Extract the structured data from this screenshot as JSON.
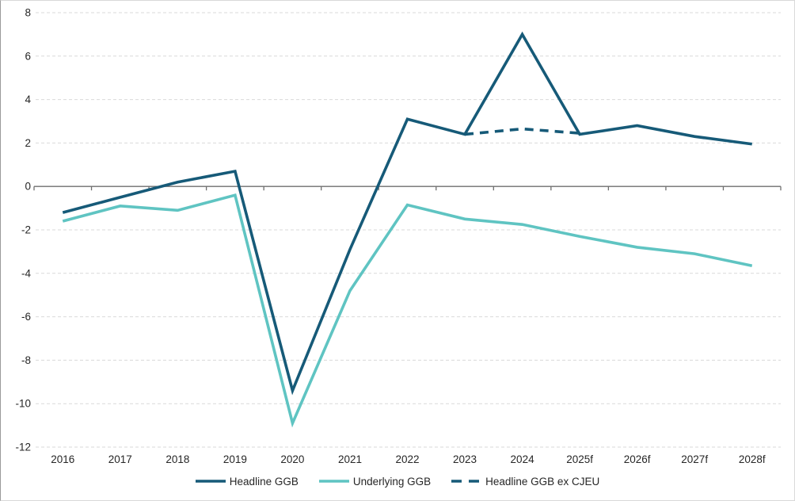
{
  "chart": {
    "background": "#ffffff",
    "frame_border_color": "#d9d9d9",
    "axis_color": "#6e6e6e",
    "gridline_color": "#d9d9d9",
    "label_color": "#262626"
  },
  "legend": {
    "items": [
      {
        "label": "Headline GGB"
      },
      {
        "label": "Underlying GGB"
      },
      {
        "label": "Headline GGB ex CJEU"
      }
    ]
  },
  "chart_data": {
    "type": "line",
    "title": "",
    "xlabel": "",
    "ylabel": "",
    "categories": [
      "2016",
      "2017",
      "2018",
      "2019",
      "2020",
      "2021",
      "2022",
      "2023",
      "2024",
      "2025f",
      "2026f",
      "2027f",
      "2028f"
    ],
    "series": [
      {
        "name": "Headline GGB",
        "color": "#165a78",
        "style": "solid",
        "values": [
          -1.2,
          -0.5,
          0.2,
          0.7,
          -9.4,
          -2.9,
          3.1,
          2.4,
          7.0,
          2.4,
          2.8,
          2.3,
          1.95
        ]
      },
      {
        "name": "Underlying GGB",
        "color": "#5fc4c2",
        "style": "solid",
        "values": [
          -1.6,
          -0.9,
          -1.1,
          -0.4,
          -10.9,
          -4.8,
          -0.85,
          -1.5,
          -1.75,
          -2.3,
          -2.8,
          -3.1,
          -3.65
        ]
      },
      {
        "name": "Headline GGB ex CJEU",
        "color": "#165a78",
        "style": "dashed",
        "values": [
          null,
          null,
          null,
          null,
          null,
          null,
          null,
          2.4,
          2.65,
          2.45,
          null,
          null,
          null
        ]
      }
    ],
    "ylim": [
      -12,
      8
    ],
    "y_ticks": [
      8,
      6,
      4,
      2,
      0,
      -2,
      -4,
      -6,
      -8,
      -10,
      -12
    ],
    "grid": "dashed-horizontal",
    "legend_position": "bottom"
  }
}
